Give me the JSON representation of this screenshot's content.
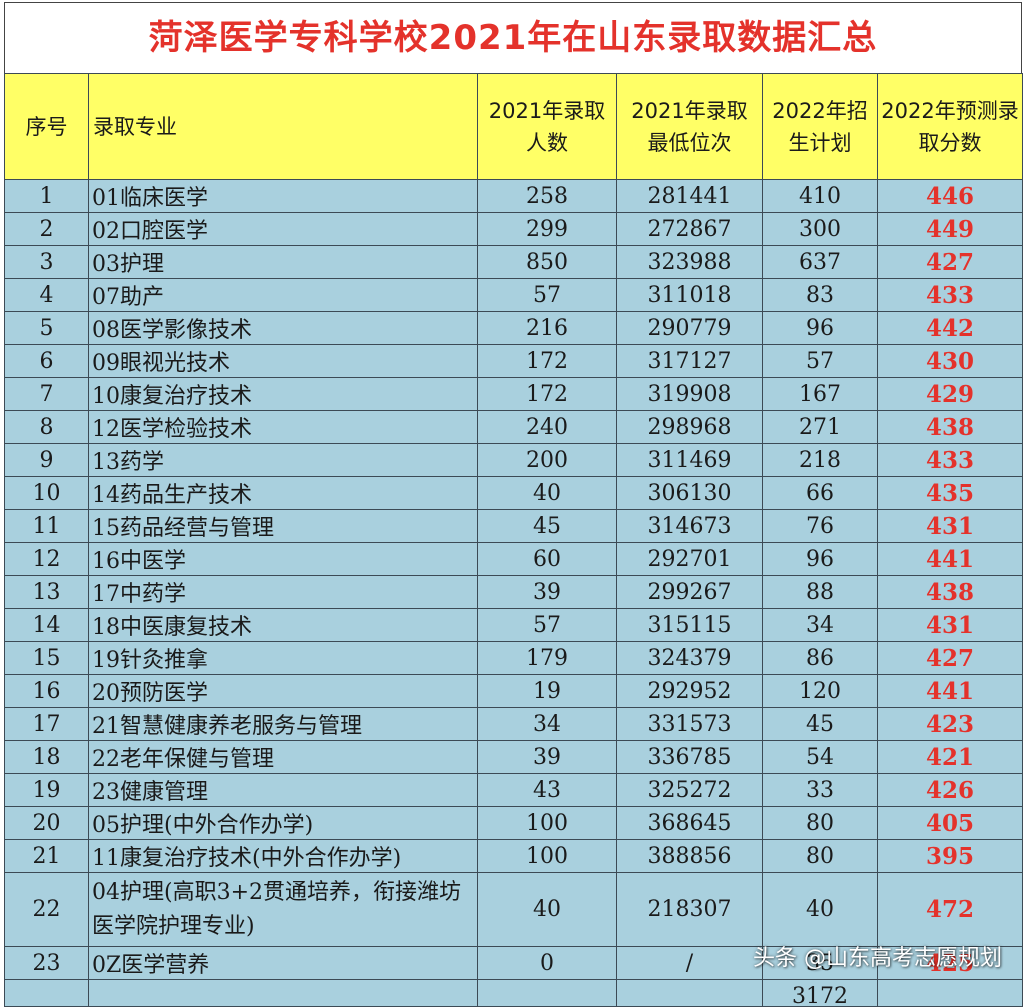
{
  "title": "菏泽医学专科学校2021年在山东录取数据汇总",
  "headers": {
    "index": "序号",
    "major": "录取专业",
    "count_2021_l1": "2021年录取",
    "count_2021_l2": "人数",
    "rank_2021_l1": "2021年录取",
    "rank_2021_l2": "最低位次",
    "plan_2022_l1": "2022年招",
    "plan_2022_l2": "生计划",
    "pred_2022_l1": "2022年预测录",
    "pred_2022_l2": "取分数"
  },
  "rows": [
    {
      "no": "1",
      "major": "01临床医学",
      "count": "258",
      "rank": "281441",
      "plan": "410",
      "pred": "446"
    },
    {
      "no": "2",
      "major": "02口腔医学",
      "count": "299",
      "rank": "272867",
      "plan": "300",
      "pred": "449"
    },
    {
      "no": "3",
      "major": "03护理",
      "count": "850",
      "rank": "323988",
      "plan": "637",
      "pred": "427"
    },
    {
      "no": "4",
      "major": "07助产",
      "count": "57",
      "rank": "311018",
      "plan": "83",
      "pred": "433"
    },
    {
      "no": "5",
      "major": "08医学影像技术",
      "count": "216",
      "rank": "290779",
      "plan": "96",
      "pred": "442"
    },
    {
      "no": "6",
      "major": "09眼视光技术",
      "count": "172",
      "rank": "317127",
      "plan": "57",
      "pred": "430"
    },
    {
      "no": "7",
      "major": "10康复治疗技术",
      "count": "172",
      "rank": "319908",
      "plan": "167",
      "pred": "429"
    },
    {
      "no": "8",
      "major": "12医学检验技术",
      "count": "240",
      "rank": "298968",
      "plan": "271",
      "pred": "438"
    },
    {
      "no": "9",
      "major": "13药学",
      "count": "200",
      "rank": "311469",
      "plan": "218",
      "pred": "433"
    },
    {
      "no": "10",
      "major": "14药品生产技术",
      "count": "40",
      "rank": "306130",
      "plan": "66",
      "pred": "435"
    },
    {
      "no": "11",
      "major": "15药品经营与管理",
      "count": "45",
      "rank": "314673",
      "plan": "76",
      "pred": "431"
    },
    {
      "no": "12",
      "major": "16中医学",
      "count": "60",
      "rank": "292701",
      "plan": "96",
      "pred": "441"
    },
    {
      "no": "13",
      "major": "17中药学",
      "count": "39",
      "rank": "299267",
      "plan": "88",
      "pred": "438"
    },
    {
      "no": "14",
      "major": "18中医康复技术",
      "count": "57",
      "rank": "315115",
      "plan": "34",
      "pred": "431"
    },
    {
      "no": "15",
      "major": "19针灸推拿",
      "count": "179",
      "rank": "324379",
      "plan": "86",
      "pred": "427"
    },
    {
      "no": "16",
      "major": "20预防医学",
      "count": "19",
      "rank": "292952",
      "plan": "120",
      "pred": "441"
    },
    {
      "no": "17",
      "major": "21智慧健康养老服务与管理",
      "count": "34",
      "rank": "331573",
      "plan": "45",
      "pred": "423"
    },
    {
      "no": "18",
      "major": "22老年保健与管理",
      "count": "39",
      "rank": "336785",
      "plan": "54",
      "pred": "421"
    },
    {
      "no": "19",
      "major": "23健康管理",
      "count": "43",
      "rank": "325272",
      "plan": "33",
      "pred": "426"
    },
    {
      "no": "20",
      "major": "05护理(中外合作办学)",
      "count": "100",
      "rank": "368645",
      "plan": "80",
      "pred": "405"
    },
    {
      "no": "21",
      "major": "11康复治疗技术(中外合作办学)",
      "count": "100",
      "rank": "388856",
      "plan": "80",
      "pred": "395"
    },
    {
      "no": "22",
      "major": "04护理(高职3+2贯通培养，衔接潍坊医学院护理专业)",
      "count": "40",
      "rank": "218307",
      "plan": "40",
      "pred": "472"
    },
    {
      "no": "23",
      "major": "0Z医学营养",
      "count": "0",
      "rank": "/",
      "plan": "35",
      "pred": "425"
    }
  ],
  "total": {
    "plan": "3172"
  },
  "watermark": "头条 @山东高考志愿规划",
  "colors": {
    "title_red": "#e4322b",
    "header_yellow": "#ffff66",
    "body_blue": "#a9d0de",
    "pred_red": "#e4322b"
  }
}
